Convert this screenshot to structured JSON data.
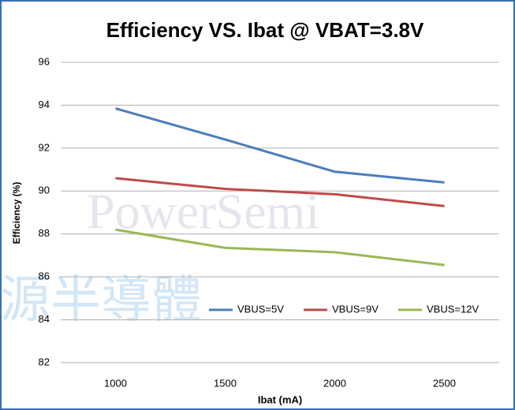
{
  "chart_data": {
    "type": "line",
    "title": "Efficiency VS. Ibat @ VBAT=3.8V",
    "x_label": "Ibat (mA)",
    "y_label": "Efficiency (%)",
    "watermark": [
      "PowerSemi",
      "源半導體"
    ],
    "categories": [
      "1000",
      "1500",
      "2000",
      "2500"
    ],
    "series": [
      {
        "name": "VBUS=5V",
        "color": "#4a7ebb",
        "values": [
          93.85,
          92.4,
          90.9,
          90.4
        ]
      },
      {
        "name": "VBUS=9V",
        "color": "#be4b48",
        "values": [
          90.6,
          90.1,
          89.85,
          89.3
        ]
      },
      {
        "name": "VBUS=12V",
        "color": "#98b954",
        "values": [
          88.2,
          87.35,
          87.15,
          86.55
        ]
      }
    ],
    "ylim": [
      82,
      96
    ],
    "yticks": [
      82,
      84,
      86,
      88,
      90,
      92,
      94,
      96
    ],
    "grid": true,
    "legend": "inside-bottom"
  }
}
